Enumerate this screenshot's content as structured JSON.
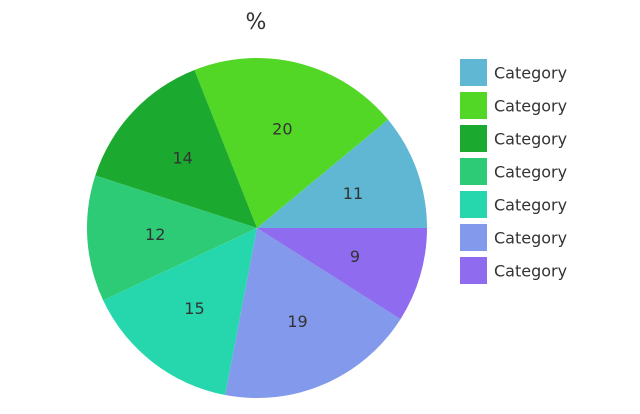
{
  "chart_data": {
    "type": "pie",
    "title": "%",
    "categories": [
      "Category",
      "Category",
      "Category",
      "Category",
      "Category",
      "Category",
      "Category"
    ],
    "values": [
      11,
      20,
      14,
      12,
      15,
      19,
      9
    ],
    "colors": [
      "#5fb7d4",
      "#52d726",
      "#1ca92f",
      "#2dcb75",
      "#26d7ae",
      "#8399eb",
      "#8e6bef"
    ],
    "start_angle": "east, counterclockwise",
    "legend": "right"
  }
}
